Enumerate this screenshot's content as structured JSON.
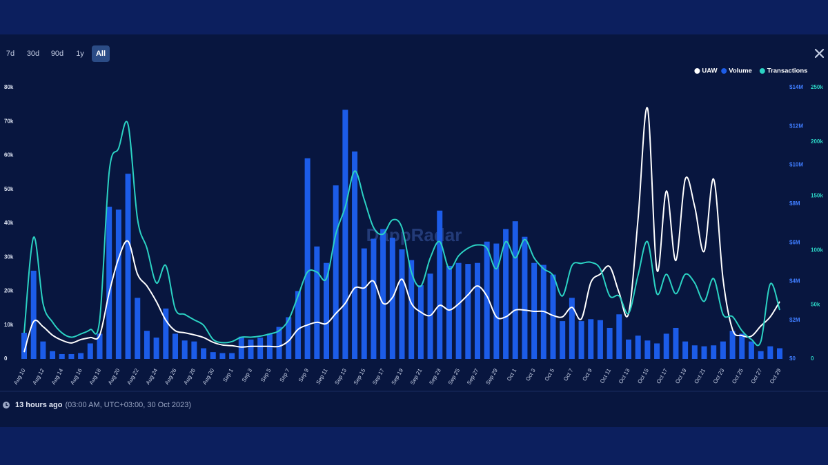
{
  "controls": {
    "ranges": [
      "7d",
      "30d",
      "90d",
      "1y",
      "All"
    ],
    "active_range": 4
  },
  "watermark": "DappRadar",
  "footer": {
    "time_ago": "13 hours ago",
    "timestamp": "(03:00 AM, UTC+03:00, 30 Oct 2023)"
  },
  "chart_data": {
    "type": "combo",
    "categories": [
      "Aug 10",
      null,
      "Aug 12",
      null,
      "Aug 14",
      null,
      "Aug 16",
      null,
      "Aug 18",
      null,
      "Aug 20",
      null,
      "Aug 22",
      null,
      "Aug 24",
      null,
      "Aug 26",
      null,
      "Aug 28",
      null,
      "Aug 30",
      null,
      "Sep 1",
      null,
      "Sep 3",
      null,
      "Sep 5",
      null,
      "Sep 7",
      null,
      "Sep 9",
      null,
      "Sep 11",
      null,
      "Sep 13",
      null,
      "Sep 15",
      null,
      "Sep 17",
      null,
      "Sep 19",
      null,
      "Sep 21",
      null,
      "Sep 23",
      null,
      "Sep 25",
      null,
      "Sep 27",
      null,
      "Sep 29",
      null,
      "Oct 1",
      null,
      "Oct 3",
      null,
      "Oct 5",
      null,
      "Oct 7",
      null,
      "Oct 9",
      null,
      "Oct 11",
      null,
      "Oct 13",
      null,
      "Oct 15",
      null,
      "Oct 17",
      null,
      "Oct 19",
      null,
      "Oct 21",
      null,
      "Oct 23",
      null,
      "Oct 25",
      null,
      "Oct 27",
      null,
      "Oct 29"
    ],
    "series": [
      {
        "name": "UAW",
        "type": "line",
        "axis": "y",
        "color": "#ffffff",
        "values": [
          2000,
          11000,
          9500,
          7000,
          5500,
          4700,
          5700,
          6300,
          7000,
          19500,
          29600,
          34700,
          25000,
          21500,
          16900,
          11400,
          8300,
          7700,
          7100,
          6300,
          4900,
          4100,
          3900,
          3500,
          3700,
          3700,
          3700,
          3700,
          5300,
          8700,
          10000,
          10800,
          10400,
          13400,
          16400,
          20900,
          20900,
          22900,
          16400,
          18100,
          23500,
          16400,
          13800,
          12800,
          15800,
          14400,
          16200,
          18900,
          21500,
          18500,
          12400,
          12400,
          14400,
          14400,
          14000,
          14000,
          12800,
          12400,
          15200,
          11800,
          22500,
          25000,
          27200,
          19500,
          13400,
          41200,
          73900,
          26200,
          49500,
          29000,
          53000,
          44900,
          31700,
          53000,
          23500,
          8700,
          6900,
          6700,
          9700,
          12400,
          16900
        ]
      },
      {
        "name": "Volume",
        "type": "bar",
        "axis": "y2",
        "color": "#1c5ce8",
        "values": [
          1350000,
          4550000,
          900000,
          400000,
          250000,
          250000,
          300000,
          800000,
          1300000,
          7850000,
          7700000,
          9550000,
          3150000,
          1450000,
          1100000,
          2600000,
          1300000,
          950000,
          900000,
          550000,
          350000,
          300000,
          300000,
          1150000,
          1000000,
          1100000,
          1300000,
          1650000,
          2150000,
          3500000,
          10350000,
          5800000,
          4950000,
          8950000,
          12850000,
          10700000,
          5700000,
          6200000,
          6700000,
          6250000,
          5650000,
          5100000,
          3800000,
          4400000,
          7650000,
          4800000,
          4950000,
          4900000,
          4950000,
          6050000,
          5950000,
          6700000,
          7100000,
          6300000,
          4950000,
          4850000,
          4350000,
          1950000,
          3150000,
          1950000,
          2050000,
          2000000,
          1600000,
          2300000,
          1000000,
          1200000,
          950000,
          800000,
          1300000,
          1600000,
          900000,
          700000,
          650000,
          700000,
          900000,
          1450000,
          1300000,
          900000,
          400000,
          650000,
          550000
        ]
      },
      {
        "name": "Transactions",
        "type": "line",
        "axis": "y3",
        "color": "#2bd2c3",
        "values": [
          24000,
          112000,
          51000,
          34000,
          24000,
          20000,
          23000,
          27000,
          36000,
          172000,
          194000,
          216000,
          129000,
          102000,
          70000,
          86000,
          46000,
          41000,
          36000,
          31000,
          18000,
          15000,
          16000,
          20000,
          20000,
          21000,
          23000,
          26000,
          36000,
          58000,
          80000,
          80000,
          74000,
          115000,
          140000,
          173000,
          147000,
          121000,
          115000,
          128000,
          121000,
          80000,
          67000,
          93000,
          108000,
          83000,
          95000,
          102000,
          105000,
          102000,
          83000,
          108000,
          93000,
          110000,
          93000,
          83000,
          77000,
          58000,
          86000,
          88000,
          89000,
          83000,
          58000,
          58000,
          42000,
          77000,
          108000,
          60000,
          78000,
          60000,
          78000,
          70000,
          53000,
          74000,
          41000,
          39000,
          26000,
          18000,
          16000,
          69000,
          45000
        ]
      }
    ],
    "ylim": [
      0,
      80000
    ],
    "yticks": [
      0,
      {
        "value": 10000,
        "label": "10k"
      },
      {
        "value": 20000,
        "label": "20k"
      },
      {
        "value": 30000,
        "label": "30k"
      },
      {
        "value": 40000,
        "label": "40k"
      },
      {
        "value": 50000,
        "label": "50k"
      },
      {
        "value": 60000,
        "label": "60k"
      },
      {
        "value": 70000,
        "label": "70k"
      },
      {
        "value": 80000,
        "label": "80k"
      }
    ],
    "y2lim": [
      0,
      14000000
    ],
    "y2ticks": [
      {
        "value": 0,
        "label": "$0"
      },
      {
        "value": 2000000,
        "label": "$2M"
      },
      {
        "value": 4000000,
        "label": "$4M"
      },
      {
        "value": 6000000,
        "label": "$6M"
      },
      {
        "value": 8000000,
        "label": "$8M"
      },
      {
        "value": 10000000,
        "label": "$10M"
      },
      {
        "value": 12000000,
        "label": "$12M"
      },
      {
        "value": 14000000,
        "label": "$14M"
      }
    ],
    "y3lim": [
      0,
      250000
    ],
    "y3ticks": [
      0,
      {
        "value": 50000,
        "label": "50k"
      },
      {
        "value": 100000,
        "label": "100k"
      },
      {
        "value": 150000,
        "label": "150k"
      },
      {
        "value": 200000,
        "label": "200k"
      },
      {
        "value": 250000,
        "label": "250k"
      }
    ],
    "legend": "top-right"
  }
}
